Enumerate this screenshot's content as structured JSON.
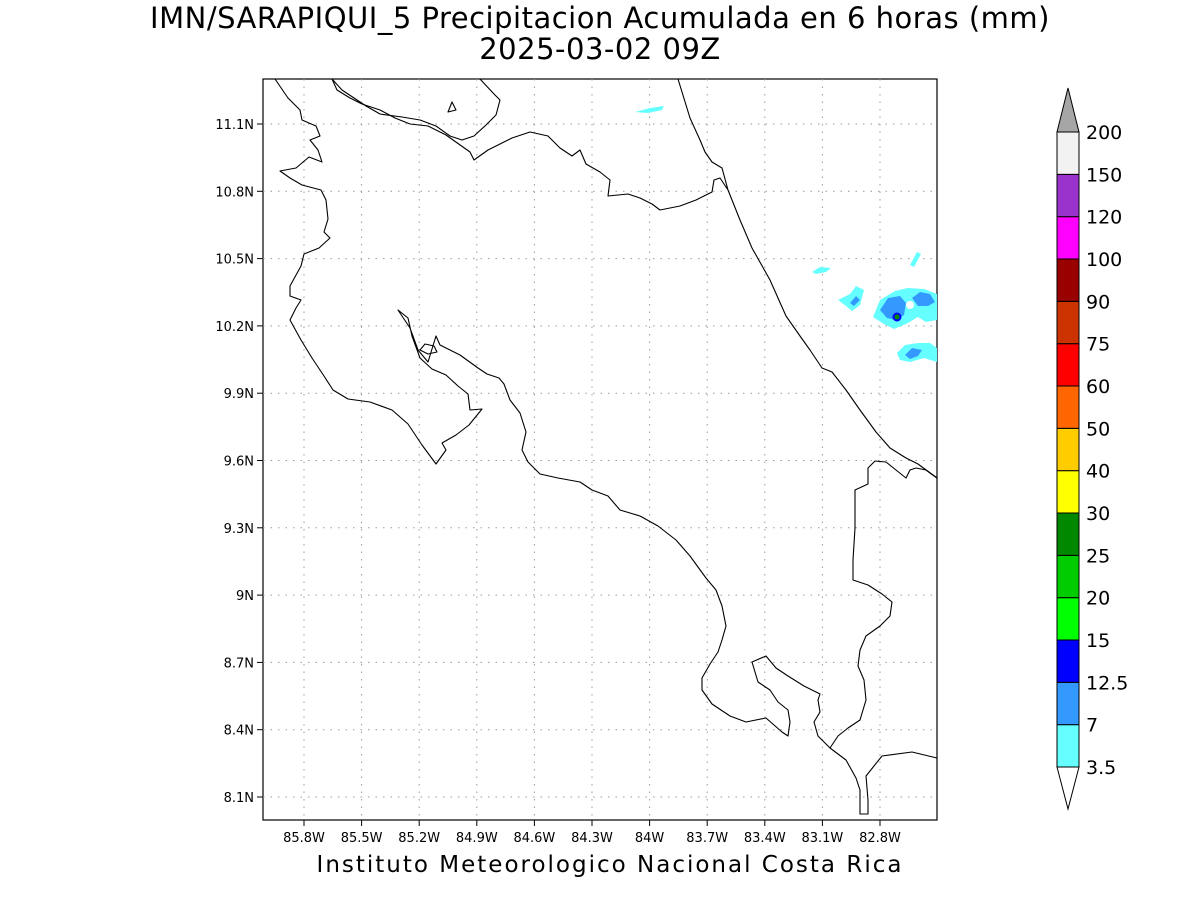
{
  "map": {
    "title_line1": "IMN/SARAPIQUI_5 Precipitacion Acumulada en 6 horas (mm)",
    "title_line2": "2025-03-02 09Z",
    "footer": "Instituto Meteorologico Nacional Costa Rica",
    "lat_labels": [
      "11.1N",
      "10.8N",
      "10.5N",
      "10.2N",
      "9.9N",
      "9.6N",
      "9.3N",
      "9N",
      "8.7N",
      "8.4N",
      "8.1N"
    ],
    "lon_labels": [
      "85.8W",
      "85.5W",
      "85.2W",
      "84.9W",
      "84.6W",
      "84.3W",
      "84W",
      "83.7W",
      "83.4W",
      "83.1W",
      "82.8W"
    ],
    "coast_color": "#000000",
    "grid_color": "#999999"
  },
  "colorbar": {
    "levels": [
      "3.5",
      "7",
      "12.5",
      "15",
      "20",
      "25",
      "30",
      "40",
      "50",
      "60",
      "75",
      "90",
      "100",
      "120",
      "150",
      "200"
    ],
    "colors": [
      "#66ffff",
      "#3399ff",
      "#0000ff",
      "#00ff00",
      "#00cc00",
      "#008800",
      "#ffff00",
      "#ffcc00",
      "#ff6600",
      "#ff0000",
      "#cc3300",
      "#990000",
      "#ff00ff",
      "#9933cc",
      "#f2f2f2"
    ],
    "under_color": "#ffffff",
    "over_color": "#a6a6a6"
  }
}
